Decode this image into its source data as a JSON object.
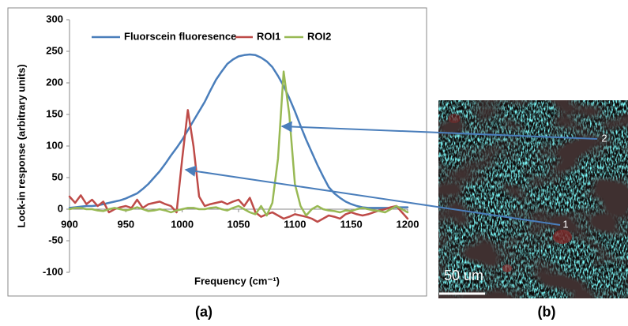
{
  "chart_data": {
    "type": "line",
    "y_label": "Lock-in response (arbitrary units)",
    "x_label": "Frequency (cm⁻¹)",
    "x": [
      900,
      905,
      910,
      915,
      920,
      925,
      930,
      935,
      940,
      945,
      950,
      955,
      960,
      965,
      970,
      975,
      980,
      985,
      990,
      995,
      1000,
      1005,
      1010,
      1015,
      1020,
      1025,
      1030,
      1035,
      1040,
      1045,
      1050,
      1055,
      1060,
      1065,
      1070,
      1075,
      1080,
      1085,
      1090,
      1095,
      1100,
      1105,
      1110,
      1115,
      1120,
      1125,
      1130,
      1135,
      1140,
      1145,
      1150,
      1155,
      1160,
      1165,
      1170,
      1175,
      1180,
      1185,
      1190,
      1195,
      1200
    ],
    "series": [
      {
        "name": "Fluorscein fluoresence",
        "color": "#4a7ebb",
        "values": [
          2,
          3,
          4,
          5,
          5,
          6,
          8,
          10,
          12,
          14,
          17,
          21,
          25,
          32,
          40,
          50,
          60,
          72,
          85,
          97,
          110,
          125,
          140,
          155,
          170,
          188,
          205,
          218,
          230,
          237,
          242,
          244,
          245,
          244,
          240,
          234,
          225,
          211,
          195,
          176,
          155,
          132,
          110,
          90,
          70,
          52,
          35,
          25,
          18,
          12,
          8,
          5,
          3,
          2,
          2,
          2,
          2,
          2,
          3,
          3,
          3
        ]
      },
      {
        "name": "ROI1",
        "color": "#be4b48",
        "values": [
          20,
          10,
          22,
          8,
          15,
          5,
          12,
          -5,
          0,
          3,
          5,
          2,
          15,
          2,
          8,
          10,
          12,
          8,
          5,
          -5,
          80,
          157,
          100,
          20,
          5,
          8,
          10,
          12,
          8,
          12,
          15,
          5,
          18,
          -5,
          -12,
          -8,
          -5,
          -10,
          -15,
          -12,
          -8,
          -10,
          -12,
          -15,
          -20,
          -15,
          -10,
          -12,
          -15,
          -8,
          -5,
          -8,
          -10,
          -8,
          -5,
          -2,
          0,
          3,
          5,
          -5,
          -15
        ]
      },
      {
        "name": "ROI2",
        "color": "#98b954",
        "values": [
          0,
          2,
          2,
          0,
          0,
          -2,
          -3,
          0,
          2,
          0,
          -2,
          0,
          3,
          0,
          -3,
          -2,
          0,
          -2,
          -5,
          -2,
          0,
          2,
          2,
          0,
          0,
          2,
          3,
          0,
          -2,
          2,
          5,
          0,
          -5,
          -8,
          5,
          -10,
          10,
          80,
          218,
          150,
          40,
          5,
          -10,
          0,
          5,
          0,
          -2,
          -3,
          -5,
          -2,
          -3,
          0,
          2,
          0,
          -2,
          -3,
          -5,
          0,
          5,
          0,
          -5
        ]
      }
    ],
    "xlim": [
      900,
      1200
    ],
    "xticks": [
      900,
      950,
      1000,
      1050,
      1100,
      1150,
      1200
    ],
    "ylim": [
      -100,
      300
    ],
    "yticks": [
      -100,
      -50,
      0,
      50,
      100,
      150,
      200,
      250,
      300
    ],
    "grid": false,
    "legend": "top"
  },
  "image_panel": {
    "markers": [
      "2",
      "1"
    ],
    "scale_bar": "50 um"
  },
  "captions": [
    "(a)",
    "(b)"
  ]
}
